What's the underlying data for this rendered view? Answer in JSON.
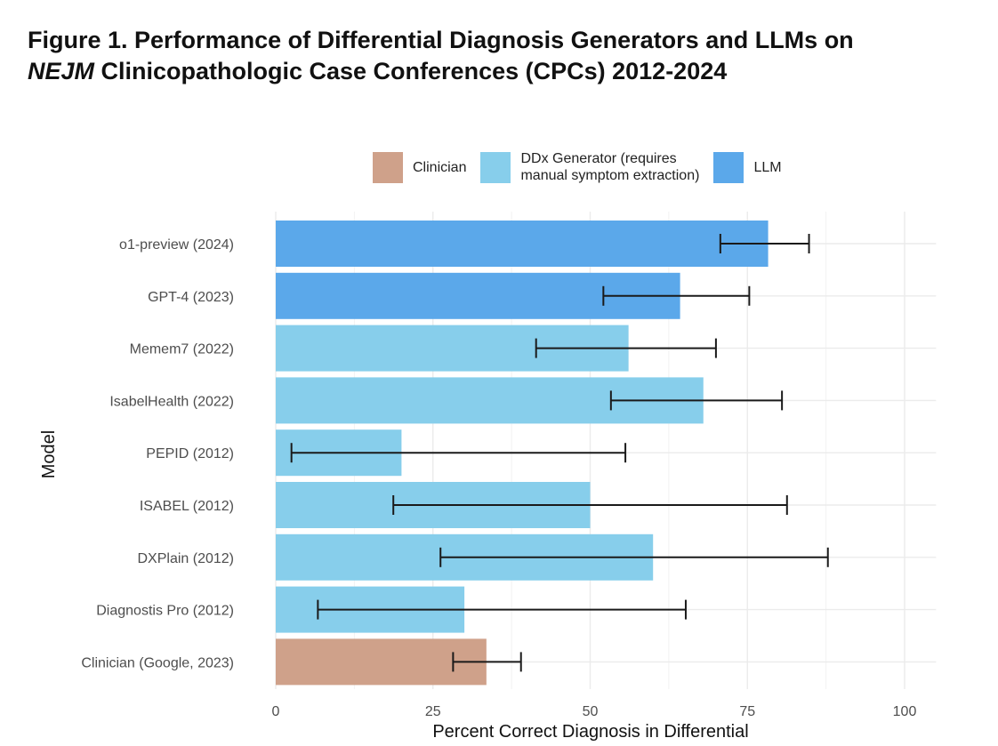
{
  "header": {
    "title_line1": "Figure 1. Performance of Differential Diagnosis Generators and LLMs on",
    "title_line2_italic": "NEJM",
    "title_line2_rest": " Clinicopathologic Case Conferences (CPCs) 2012-2024"
  },
  "chart_data": {
    "type": "bar",
    "orientation": "horizontal",
    "title": "Figure 1. Performance of Differential Diagnosis Generators and LLMs on NEJM Clinicopathologic Case Conferences (CPCs) 2012-2024",
    "xlabel": "Percent Correct Diagnosis in Differential",
    "ylabel": "Model",
    "xlim": [
      0,
      105
    ],
    "xticks": [
      0,
      25,
      50,
      75,
      100
    ],
    "grid": true,
    "legend_position": "top",
    "legend": [
      {
        "key": "clinician",
        "label": "Clinician",
        "color": "#cfa18a"
      },
      {
        "key": "ddx",
        "label": "DDx Generator (requires manual symptom extraction)",
        "label_lines": [
          "DDx Generator (requires",
          "manual symptom extraction)"
        ],
        "color": "#87ceeb"
      },
      {
        "key": "llm",
        "label": "LLM",
        "color": "#5ba8ea"
      }
    ],
    "bars": [
      {
        "label": "o1-preview (2024)",
        "value": 78.3,
        "ci_low": 70.7,
        "ci_high": 84.8,
        "group": "llm"
      },
      {
        "label": "GPT-4 (2023)",
        "value": 64.3,
        "ci_low": 52.1,
        "ci_high": 75.3,
        "group": "llm"
      },
      {
        "label": "Memem7 (2022)",
        "value": 56.1,
        "ci_low": 41.4,
        "ci_high": 70.0,
        "group": "ddx"
      },
      {
        "label": "IsabelHealth (2022)",
        "value": 68.0,
        "ci_low": 53.3,
        "ci_high": 80.5,
        "group": "ddx"
      },
      {
        "label": "PEPID (2012)",
        "value": 20.0,
        "ci_low": 2.5,
        "ci_high": 55.6,
        "group": "ddx"
      },
      {
        "label": "ISABEL (2012)",
        "value": 50.0,
        "ci_low": 18.7,
        "ci_high": 81.3,
        "group": "ddx"
      },
      {
        "label": "DXPlain (2012)",
        "value": 60.0,
        "ci_low": 26.2,
        "ci_high": 87.8,
        "group": "ddx"
      },
      {
        "label": "Diagnostis Pro (2012)",
        "value": 30.0,
        "ci_low": 6.7,
        "ci_high": 65.2,
        "group": "ddx"
      },
      {
        "label": "Clinician (Google, 2023)",
        "value": 33.5,
        "ci_low": 28.2,
        "ci_high": 39.0,
        "group": "clinician"
      }
    ]
  }
}
